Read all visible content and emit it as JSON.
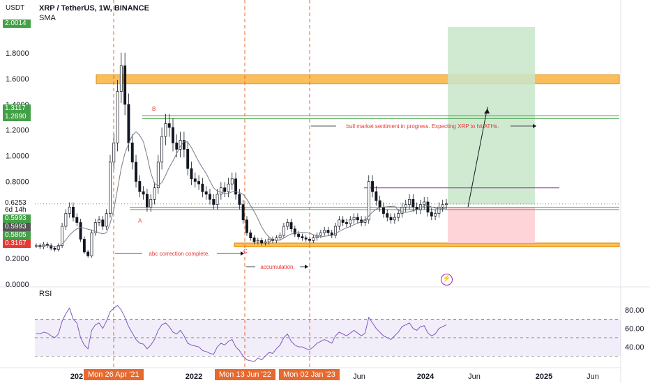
{
  "header": {
    "currency": "USDT",
    "title": "XRP / TetherUS, 1W, BINANCE",
    "indicator": "SMA",
    "rsi_label": "RSI"
  },
  "price_tags": [
    {
      "text": "2.0014",
      "color": "#43a047",
      "price": 2.0014
    },
    {
      "text": "1.3117",
      "color": "#43a047",
      "price": 1.3117
    },
    {
      "text": "1.2890",
      "color": "#43a047",
      "price": 1.289
    },
    {
      "text": "0.6253",
      "color": "#ffffff",
      "price": 0.6253,
      "fg": "#131722"
    },
    {
      "text": "6d 14h",
      "color": "#ffffff",
      "price": 0.575,
      "fg": "#131722"
    },
    {
      "text": "0.5993",
      "color": "#43a047",
      "price": 0.518
    },
    {
      "text": "0.5993",
      "color": "#555555",
      "price": 0.45
    },
    {
      "text": "0.5805",
      "color": "#43a047",
      "price": 0.382
    },
    {
      "text": "0.3167",
      "color": "#e53935",
      "price": 0.3167
    }
  ],
  "date_tags": [
    {
      "text": "Mon 26 Apr '21",
      "date": "2021-04-26"
    },
    {
      "text": "Mon 13 Jun '22",
      "date": "2022-06-13"
    },
    {
      "text": "Mon 02 Jan '23",
      "date": "2023-01-02"
    }
  ],
  "annotations": {
    "bull": "bull market sentiment in progress. Expecting XRP to hit ATHs.",
    "abc": "abc correction complete.",
    "accum": "accumulation.",
    "wave_a": "A",
    "wave_b": "B",
    "wave_c": "C"
  },
  "chart_data": {
    "type": "candlestick",
    "title": "XRP / TetherUS, 1W, BINANCE",
    "y_ticks": [
      "0.0000",
      "0.2000",
      "0.4000",
      "0.6000",
      "0.8000",
      "1.0000",
      "1.2000",
      "1.4000",
      "1.6000",
      "1.8000"
    ],
    "y_range": [
      0.0,
      2.05
    ],
    "x_ticks": [
      "202",
      "2022",
      "Jun",
      "2024",
      "Jun",
      "2025",
      "Jun"
    ],
    "rsi_ticks": [
      "80.00",
      "60.00",
      "40.00"
    ],
    "rsi_range": [
      22,
      93
    ],
    "rsi_bands": [
      30,
      50,
      70
    ],
    "zones": [
      {
        "kind": "resistance",
        "low": 1.56,
        "high": 1.63,
        "color": "#f9a825"
      },
      {
        "kind": "support",
        "low": 0.29,
        "high": 0.32,
        "color": "#f9a825"
      },
      {
        "kind": "target",
        "low": 0.62,
        "high": 2.0014,
        "color": "#c8e6c9"
      },
      {
        "kind": "stop",
        "low": 0.32,
        "high": 0.6,
        "color": "#ffcdd2"
      }
    ],
    "levels": [
      1.3117,
      1.289,
      0.6253,
      0.5993,
      0.5805
    ],
    "close_series": [
      0.3,
      0.29,
      0.31,
      0.3,
      0.28,
      0.27,
      0.3,
      0.45,
      0.55,
      0.6,
      0.52,
      0.48,
      0.35,
      0.25,
      0.22,
      0.4,
      0.48,
      0.5,
      0.45,
      0.55,
      0.95,
      1.1,
      1.5,
      1.7,
      1.4,
      1.1,
      0.95,
      0.8,
      0.72,
      0.7,
      0.6,
      0.66,
      0.75,
      0.95,
      1.15,
      1.25,
      1.22,
      1.1,
      1.05,
      1.12,
      1.05,
      0.9,
      0.82,
      0.8,
      0.78,
      0.72,
      0.7,
      0.66,
      0.62,
      0.7,
      0.75,
      0.72,
      0.78,
      0.82,
      0.7,
      0.62,
      0.5,
      0.4,
      0.36,
      0.33,
      0.34,
      0.32,
      0.33,
      0.35,
      0.34,
      0.36,
      0.38,
      0.45,
      0.48,
      0.43,
      0.39,
      0.37,
      0.36,
      0.35,
      0.34,
      0.36,
      0.38,
      0.4,
      0.42,
      0.4,
      0.38,
      0.45,
      0.5,
      0.48,
      0.47,
      0.5,
      0.52,
      0.5,
      0.48,
      0.5,
      0.8,
      0.72,
      0.65,
      0.6,
      0.55,
      0.52,
      0.5,
      0.52,
      0.55,
      0.6,
      0.62,
      0.66,
      0.6,
      0.58,
      0.62,
      0.64,
      0.56,
      0.53,
      0.55,
      0.6,
      0.62,
      0.6253
    ],
    "rsi_series": [
      55,
      54,
      56,
      55,
      52,
      50,
      54,
      68,
      76,
      82,
      70,
      66,
      50,
      42,
      38,
      58,
      64,
      66,
      60,
      68,
      78,
      82,
      85,
      80,
      72,
      62,
      55,
      48,
      44,
      43,
      38,
      42,
      48,
      58,
      64,
      66,
      62,
      56,
      54,
      58,
      52,
      44,
      42,
      41,
      40,
      36,
      35,
      33,
      32,
      40,
      44,
      42,
      46,
      48,
      40,
      36,
      30,
      26,
      25,
      24,
      28,
      26,
      30,
      34,
      33,
      38,
      42,
      50,
      54,
      46,
      42,
      40,
      40,
      38,
      37,
      40,
      44,
      46,
      48,
      46,
      44,
      52,
      56,
      54,
      52,
      55,
      58,
      55,
      52,
      55,
      72,
      66,
      60,
      56,
      52,
      50,
      48,
      52,
      56,
      62,
      64,
      66,
      60,
      58,
      62,
      63,
      55,
      52,
      54,
      60,
      62,
      64
    ]
  }
}
